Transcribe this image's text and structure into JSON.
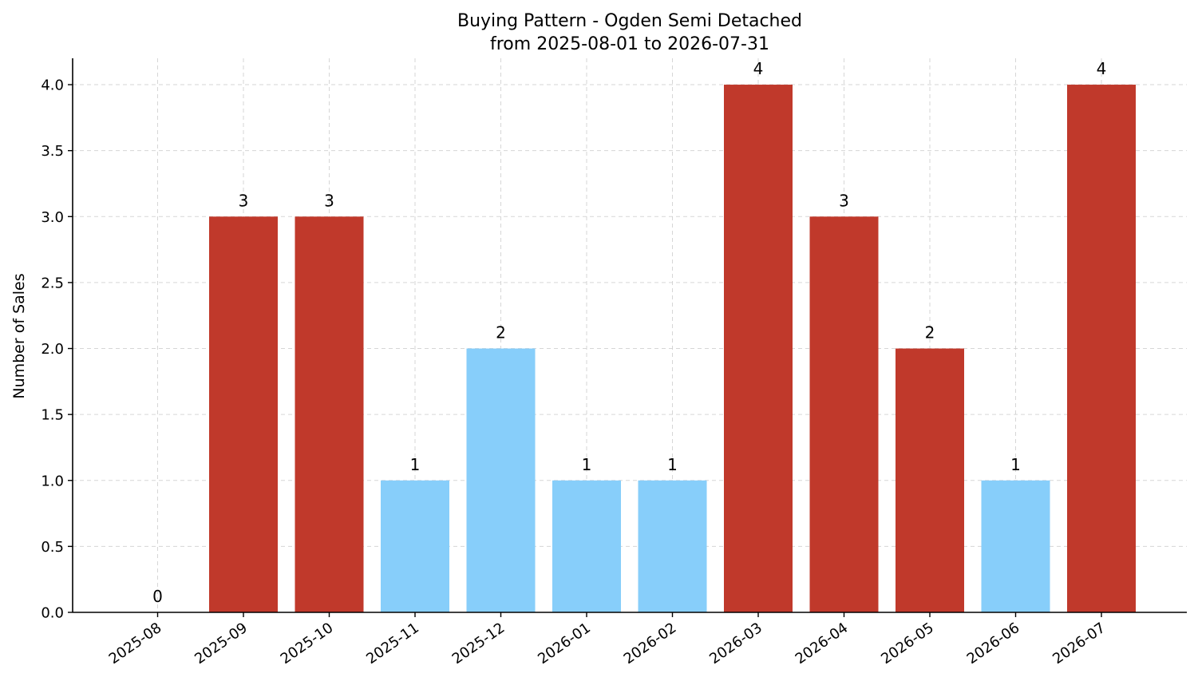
{
  "chart_data": {
    "type": "bar",
    "title": "Buying Pattern - Ogden Semi Detached",
    "subtitle": "from 2025-08-01 to 2026-07-31",
    "xlabel": "",
    "ylabel": "Number of Sales",
    "ylim": [
      0,
      4.2
    ],
    "yticks": [
      "0.0",
      "0.5",
      "1.0",
      "1.5",
      "2.0",
      "2.5",
      "3.0",
      "3.5",
      "4.0"
    ],
    "categories": [
      "2025-08",
      "2025-09",
      "2025-10",
      "2025-11",
      "2025-12",
      "2026-01",
      "2026-02",
      "2026-03",
      "2026-04",
      "2026-05",
      "2026-06",
      "2026-07"
    ],
    "values": [
      0,
      3,
      3,
      1,
      2,
      1,
      1,
      4,
      3,
      2,
      1,
      4
    ],
    "value_labels": [
      "0",
      "3",
      "3",
      "1",
      "2",
      "1",
      "1",
      "4",
      "3",
      "2",
      "1",
      "4"
    ],
    "bar_colors": [
      "#c0392b",
      "#c0392b",
      "#c0392b",
      "#87cefa",
      "#87cefa",
      "#87cefa",
      "#87cefa",
      "#c0392b",
      "#c0392b",
      "#c0392b",
      "#87cefa",
      "#c0392b"
    ],
    "grid": true,
    "legend": "none"
  }
}
